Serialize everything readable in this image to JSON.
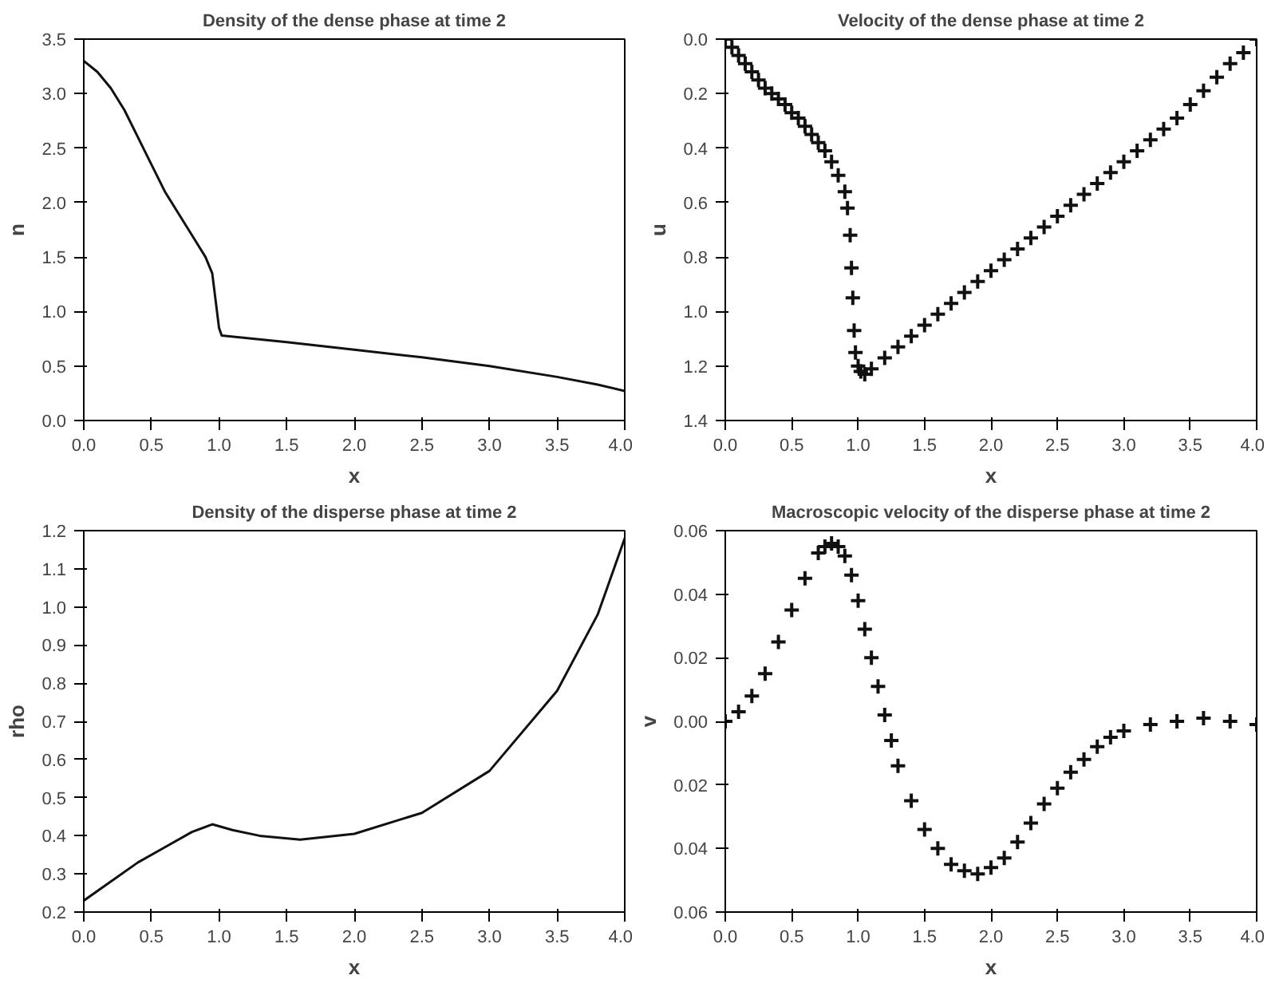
{
  "chart_data": [
    {
      "type": "line",
      "title": "Density of the dense phase at time 2",
      "xlabel": "x",
      "ylabel": "n",
      "grid": false,
      "marker": "none",
      "line_style": "solid",
      "xlim": [
        0,
        4
      ],
      "xticks": [
        {
          "value": 0,
          "label": "0.0"
        },
        {
          "value": 0.5,
          "label": "0.5"
        },
        {
          "value": 1,
          "label": "1.0"
        },
        {
          "value": 1.5,
          "label": "1.5"
        },
        {
          "value": 2,
          "label": "2.0"
        },
        {
          "value": 2.5,
          "label": "2.5"
        },
        {
          "value": 3,
          "label": "3.0"
        },
        {
          "value": 3.5,
          "label": "3.5"
        },
        {
          "value": 4,
          "label": "4.0"
        }
      ],
      "ylim": [
        0,
        3.5
      ],
      "yticks": [
        {
          "value": 0,
          "label": "0.0"
        },
        {
          "value": 0.5,
          "label": "0.5"
        },
        {
          "value": 1,
          "label": "1.0"
        },
        {
          "value": 1.5,
          "label": "1.5"
        },
        {
          "value": 2,
          "label": "2.0"
        },
        {
          "value": 2.5,
          "label": "2.5"
        },
        {
          "value": 3,
          "label": "3.0"
        },
        {
          "value": 3.5,
          "label": "3.5"
        }
      ],
      "series": [
        {
          "color": "#111111",
          "x": [
            0,
            0.1,
            0.2,
            0.3,
            0.4,
            0.5,
            0.6,
            0.7,
            0.8,
            0.9,
            0.95,
            1.0,
            1.02,
            1.5,
            2.0,
            2.5,
            3.0,
            3.5,
            3.8,
            4.0
          ],
          "values": [
            3.3,
            3.2,
            3.05,
            2.85,
            2.6,
            2.35,
            2.1,
            1.9,
            1.7,
            1.5,
            1.35,
            0.85,
            0.78,
            0.72,
            0.65,
            0.58,
            0.5,
            0.4,
            0.33,
            0.27
          ]
        }
      ]
    },
    {
      "type": "scatter",
      "title": "Velocity of the dense phase at time 2",
      "xlabel": "x",
      "ylabel": "u",
      "grid": false,
      "marker": "cross",
      "xlim": [
        0,
        4
      ],
      "xticks": [
        {
          "value": 0,
          "label": "0.0"
        },
        {
          "value": 0.5,
          "label": "0.5"
        },
        {
          "value": 1,
          "label": "1.0"
        },
        {
          "value": 1.5,
          "label": "1.5"
        },
        {
          "value": 2,
          "label": "2.0"
        },
        {
          "value": 2.5,
          "label": "2.5"
        },
        {
          "value": 3,
          "label": "3.0"
        },
        {
          "value": 3.5,
          "label": "3.5"
        },
        {
          "value": 4,
          "label": "4.0"
        }
      ],
      "ylim": [
        -1.4,
        0
      ],
      "yticks": [
        {
          "value": 0,
          "label": "0.0"
        },
        {
          "value": -0.2,
          "label": "0.2"
        },
        {
          "value": -0.4,
          "label": "0.4"
        },
        {
          "value": -0.6,
          "label": "0.6"
        },
        {
          "value": -0.8,
          "label": "0.8"
        },
        {
          "value": -1.0,
          "label": "1.0"
        },
        {
          "value": -1.2,
          "label": "1.2"
        },
        {
          "value": -1.4,
          "label": "1.4"
        }
      ],
      "series": [
        {
          "color": "#111111",
          "x": [
            0,
            0.05,
            0.1,
            0.15,
            0.2,
            0.25,
            0.3,
            0.35,
            0.4,
            0.45,
            0.5,
            0.55,
            0.6,
            0.65,
            0.7,
            0.75,
            0.8,
            0.85,
            0.9,
            0.92,
            0.94,
            0.95,
            0.96,
            0.97,
            0.98,
            1.0,
            1.02,
            1.05,
            1.1,
            1.2,
            1.3,
            1.4,
            1.5,
            1.6,
            1.7,
            1.8,
            1.9,
            2.0,
            2.1,
            2.2,
            2.3,
            2.4,
            2.5,
            2.6,
            2.7,
            2.8,
            2.9,
            3.0,
            3.1,
            3.2,
            3.3,
            3.4,
            3.5,
            3.6,
            3.7,
            3.8,
            3.9,
            4.0
          ],
          "values": [
            0,
            -0.03,
            -0.06,
            -0.09,
            -0.12,
            -0.15,
            -0.18,
            -0.2,
            -0.22,
            -0.24,
            -0.27,
            -0.29,
            -0.32,
            -0.35,
            -0.38,
            -0.41,
            -0.45,
            -0.5,
            -0.56,
            -0.62,
            -0.72,
            -0.84,
            -0.95,
            -1.07,
            -1.15,
            -1.2,
            -1.22,
            -1.23,
            -1.21,
            -1.17,
            -1.13,
            -1.09,
            -1.05,
            -1.01,
            -0.97,
            -0.93,
            -0.89,
            -0.85,
            -0.81,
            -0.77,
            -0.73,
            -0.69,
            -0.65,
            -0.61,
            -0.57,
            -0.53,
            -0.49,
            -0.45,
            -0.41,
            -0.37,
            -0.33,
            -0.29,
            -0.24,
            -0.19,
            -0.14,
            -0.09,
            -0.05,
            0
          ]
        }
      ]
    },
    {
      "type": "line",
      "title": "Density of the disperse phase at time 2",
      "xlabel": "x",
      "ylabel": "rho",
      "grid": false,
      "marker": "none",
      "line_style": "solid",
      "xlim": [
        0,
        4
      ],
      "xticks": [
        {
          "value": 0,
          "label": "0.0"
        },
        {
          "value": 0.5,
          "label": "0.5"
        },
        {
          "value": 1,
          "label": "1.0"
        },
        {
          "value": 1.5,
          "label": "1.5"
        },
        {
          "value": 2,
          "label": "2.0"
        },
        {
          "value": 2.5,
          "label": "2.5"
        },
        {
          "value": 3,
          "label": "3.0"
        },
        {
          "value": 3.5,
          "label": "3.5"
        },
        {
          "value": 4,
          "label": "4.0"
        }
      ],
      "ylim": [
        0.2,
        1.2
      ],
      "yticks": [
        0.2,
        0.3,
        0.4,
        0.5,
        0.6,
        0.7,
        0.8,
        0.9,
        {
          "value": 1,
          "label": "1.0"
        },
        1.1,
        1.2
      ],
      "series": [
        {
          "color": "#111111",
          "x": [
            0,
            0.2,
            0.4,
            0.6,
            0.8,
            0.95,
            1.1,
            1.3,
            1.6,
            2.0,
            2.5,
            3.0,
            3.5,
            3.8,
            4.0
          ],
          "values": [
            0.23,
            0.28,
            0.33,
            0.37,
            0.41,
            0.43,
            0.415,
            0.4,
            0.39,
            0.405,
            0.46,
            0.57,
            0.78,
            0.98,
            1.18
          ]
        }
      ]
    },
    {
      "type": "scatter",
      "title": "Macroscopic velocity of the disperse phase at time 2",
      "xlabel": "x",
      "ylabel": "v",
      "grid": false,
      "marker": "cross",
      "xlim": [
        0,
        4
      ],
      "xticks": [
        {
          "value": 0,
          "label": "0.0"
        },
        {
          "value": 0.5,
          "label": "0.5"
        },
        {
          "value": 1,
          "label": "1.0"
        },
        {
          "value": 1.5,
          "label": "1.5"
        },
        {
          "value": 2,
          "label": "2.0"
        },
        {
          "value": 2.5,
          "label": "2.5"
        },
        {
          "value": 3,
          "label": "3.0"
        },
        {
          "value": 3.5,
          "label": "3.5"
        },
        {
          "value": 4,
          "label": "4.0"
        }
      ],
      "ylim": [
        -0.06,
        0.06
      ],
      "yticks": [
        {
          "value": 0.06,
          "label": "0.06"
        },
        {
          "value": 0.04,
          "label": "0.04"
        },
        {
          "value": 0.02,
          "label": "0.02"
        },
        {
          "value": 0,
          "label": "0.00"
        },
        {
          "value": -0.02,
          "label": "0.02"
        },
        {
          "value": -0.04,
          "label": "0.04"
        },
        {
          "value": -0.06,
          "label": "0.06"
        }
      ],
      "series": [
        {
          "color": "#111111",
          "x": [
            0,
            0.1,
            0.2,
            0.3,
            0.4,
            0.5,
            0.6,
            0.7,
            0.75,
            0.8,
            0.85,
            0.9,
            0.95,
            1.0,
            1.05,
            1.1,
            1.15,
            1.2,
            1.25,
            1.3,
            1.4,
            1.5,
            1.6,
            1.7,
            1.8,
            1.9,
            2.0,
            2.1,
            2.2,
            2.3,
            2.4,
            2.5,
            2.6,
            2.7,
            2.8,
            2.9,
            3.0,
            3.2,
            3.4,
            3.6,
            3.8,
            4.0
          ],
          "values": [
            0,
            0.003,
            0.008,
            0.015,
            0.025,
            0.035,
            0.045,
            0.053,
            0.055,
            0.056,
            0.055,
            0.052,
            0.046,
            0.038,
            0.029,
            0.02,
            0.011,
            0.002,
            -0.006,
            -0.014,
            -0.025,
            -0.034,
            -0.04,
            -0.045,
            -0.047,
            -0.048,
            -0.046,
            -0.043,
            -0.038,
            -0.032,
            -0.026,
            -0.021,
            -0.016,
            -0.012,
            -0.008,
            -0.005,
            -0.003,
            -0.001,
            0.0,
            0.001,
            0.0,
            -0.001
          ]
        }
      ]
    }
  ]
}
